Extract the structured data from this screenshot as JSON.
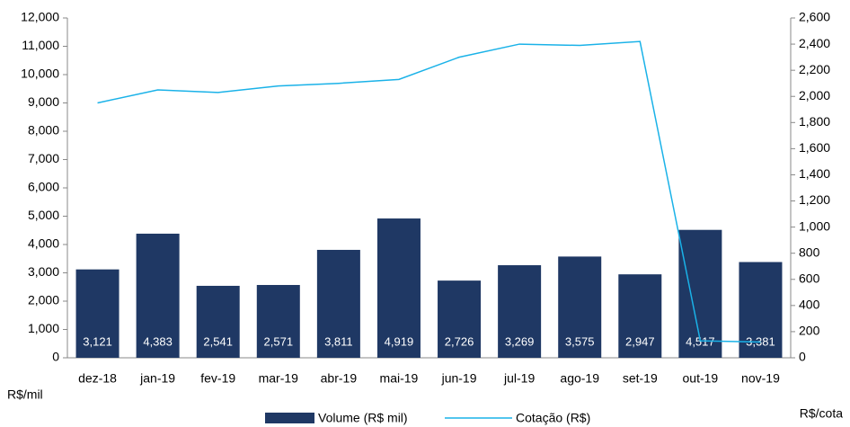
{
  "chart_data": {
    "type": "bar_line",
    "y_label": "R$/mil",
    "y2_label": "R$/cota",
    "categories": [
      "dez-18",
      "jan-19",
      "fev-19",
      "mar-19",
      "abr-19",
      "mai-19",
      "jun-19",
      "jul-19",
      "ago-19",
      "set-19",
      "out-19",
      "nov-19"
    ],
    "series": [
      {
        "name": "Volume (R$ mil)",
        "type": "bar",
        "color": "#1f3864",
        "values": [
          3121,
          4383,
          2541,
          2571,
          3811,
          4919,
          2726,
          3269,
          3575,
          2947,
          4517,
          3381
        ],
        "value_labels": [
          "3,121",
          "4,383",
          "2,541",
          "2,571",
          "3,811",
          "4,919",
          "2,726",
          "3,269",
          "3,575",
          "2,947",
          "4,517",
          "3,381"
        ]
      },
      {
        "name": "Cotação (R$)",
        "type": "line",
        "axis": "y2",
        "color": "#1ab2e8",
        "values": [
          1950,
          2050,
          2030,
          2080,
          2100,
          2130,
          2300,
          2400,
          2390,
          2420,
          130,
          120
        ]
      }
    ],
    "ylim": [
      0,
      12000
    ],
    "yticks": [
      0,
      {
        "value": 1000,
        "label": "1,000"
      },
      {
        "value": 2000,
        "label": "2,000"
      },
      {
        "value": 3000,
        "label": "3,000"
      },
      {
        "value": 4000,
        "label": "4,000"
      },
      {
        "value": 5000,
        "label": "5,000"
      },
      {
        "value": 6000,
        "label": "6,000"
      },
      {
        "value": 7000,
        "label": "7,000"
      },
      {
        "value": 8000,
        "label": "8,000"
      },
      {
        "value": 9000,
        "label": "9,000"
      },
      {
        "value": 10000,
        "label": "10,000"
      },
      {
        "value": 11000,
        "label": "11,000"
      },
      {
        "value": 12000,
        "label": "12,000"
      }
    ],
    "y2lim": [
      0,
      2600
    ],
    "y2ticks": [
      0,
      200,
      400,
      600,
      800,
      {
        "value": 1000,
        "label": "1,000"
      },
      {
        "value": 1200,
        "label": "1,200"
      },
      {
        "value": 1400,
        "label": "1,400"
      },
      {
        "value": 1600,
        "label": "1,600"
      },
      {
        "value": 1800,
        "label": "1,800"
      },
      {
        "value": 2000,
        "label": "2,000"
      },
      {
        "value": 2200,
        "label": "2,200"
      },
      {
        "value": 2400,
        "label": "2,400"
      },
      {
        "value": 2600,
        "label": "2,600"
      }
    ]
  }
}
